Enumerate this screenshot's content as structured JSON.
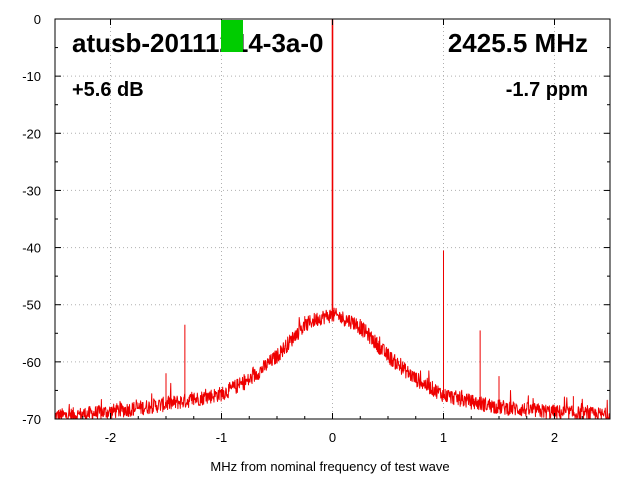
{
  "chart_data": {
    "type": "line",
    "title": "",
    "xlabel": "MHz from nominal frequency of test wave",
    "ylabel": "",
    "xlim": [
      -2.5,
      2.5
    ],
    "ylim": [
      -70,
      0
    ],
    "xticks": [
      -2,
      -1,
      0,
      1,
      2
    ],
    "xtick_labels": [
      "-2",
      "-1",
      "0",
      "1",
      "2"
    ],
    "yticks": [
      0,
      -10,
      -20,
      -30,
      -40,
      -50,
      -60,
      -70
    ],
    "ytick_labels": [
      "0",
      "-10",
      "-20",
      "-30",
      "-40",
      "-50",
      "-60",
      "-70"
    ],
    "grid": true,
    "series": [
      {
        "color": "#ee0000",
        "x": [
          -2.5,
          -2.25,
          -2.0,
          -1.75,
          -1.5,
          -1.25,
          -1.0,
          -0.75,
          -0.5,
          -0.4,
          -0.3,
          -0.2,
          -0.1,
          -0.05,
          0.0,
          0.05,
          0.1,
          0.2,
          0.3,
          0.4,
          0.5,
          0.75,
          1.0,
          1.25,
          1.5,
          1.75,
          2.0,
          2.25,
          2.5
        ],
        "y": [
          -69.5,
          -69.2,
          -68.7,
          -68.1,
          -67.4,
          -66.6,
          -65.6,
          -63.2,
          -59.0,
          -56.8,
          -54.6,
          -53.0,
          -52.2,
          -52.0,
          -51.8,
          -52.0,
          -52.4,
          -53.2,
          -54.8,
          -56.9,
          -59.0,
          -63.0,
          -65.8,
          -67.0,
          -67.9,
          -68.4,
          -68.8,
          -69.1,
          -69.4
        ],
        "spurs": [
          {
            "x": 0.0,
            "y": 0
          },
          {
            "x": -1.33,
            "y": -53.5
          },
          {
            "x": -1.5,
            "y": -62
          },
          {
            "x": -0.75,
            "y": -63
          },
          {
            "x": -0.25,
            "y": -52
          },
          {
            "x": 0.25,
            "y": -52.5
          },
          {
            "x": 1.0,
            "y": -40.5
          },
          {
            "x": 1.33,
            "y": -54.5
          },
          {
            "x": 1.5,
            "y": -62.5
          },
          {
            "x": 2.17,
            "y": -66
          },
          {
            "x": -2.0,
            "y": -68.5
          },
          {
            "x": -2.25,
            "y": -68.8
          },
          {
            "x": 0.5,
            "y": -58
          }
        ]
      }
    ]
  },
  "annotations": {
    "device": "atusb-20111214-3a-0",
    "frequency": "2425.5 MHz",
    "gain": "+5.6 dB",
    "offset": "-1.7 ppm"
  },
  "colors": {
    "trace": "#ee0000",
    "marker": "#00cc00",
    "grid": "#b0b0b0",
    "frame": "#000000"
  }
}
